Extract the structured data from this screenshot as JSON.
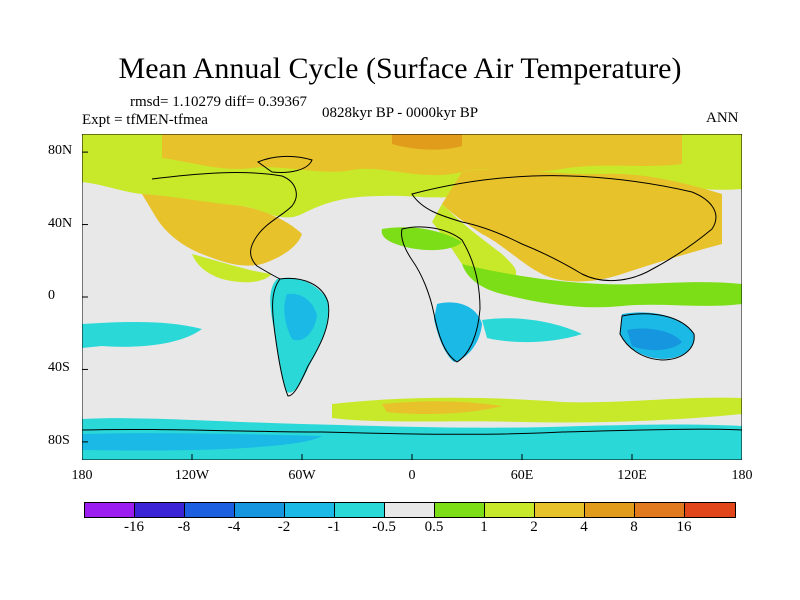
{
  "title": "Mean Annual Cycle (Surface Air Temperature)",
  "stats": "rmsd= 1.10279 diff= 0.39367",
  "experiment": "Expt = tfMEN-tfmea",
  "period": "0828kyr BP - 0000kyr BP",
  "season": "ANN",
  "axes": {
    "lat_labels": [
      {
        "text": "80N",
        "lat": 80
      },
      {
        "text": "40N",
        "lat": 40
      },
      {
        "text": "0",
        "lat": 0
      },
      {
        "text": "40S",
        "lat": -40
      },
      {
        "text": "80S",
        "lat": -80
      }
    ],
    "lon_labels": [
      {
        "text": "180",
        "lon": -180
      },
      {
        "text": "120W",
        "lon": -120
      },
      {
        "text": "60W",
        "lon": -60
      },
      {
        "text": "0",
        "lon": 0
      },
      {
        "text": "60E",
        "lon": 60
      },
      {
        "text": "120E",
        "lon": 120
      },
      {
        "text": "180",
        "lon": 180
      }
    ]
  },
  "colorbar": {
    "labels": [
      "-16",
      "-8",
      "-4",
      "-2",
      "-1",
      "-0.5",
      "0.5",
      "1",
      "2",
      "4",
      "8",
      "16"
    ],
    "colors": [
      "#9b1df0",
      "#3a24d6",
      "#1c5fe0",
      "#1796e0",
      "#1ab9e6",
      "#2ad8d8",
      "#e8e8e8",
      "#7cde16",
      "#c8e82a",
      "#e8c22a",
      "#e09c1a",
      "#e07a1c",
      "#e0461a"
    ]
  },
  "map_colors": {
    "ocean": "#e8e8e8",
    "land_outline": "#000000"
  }
}
